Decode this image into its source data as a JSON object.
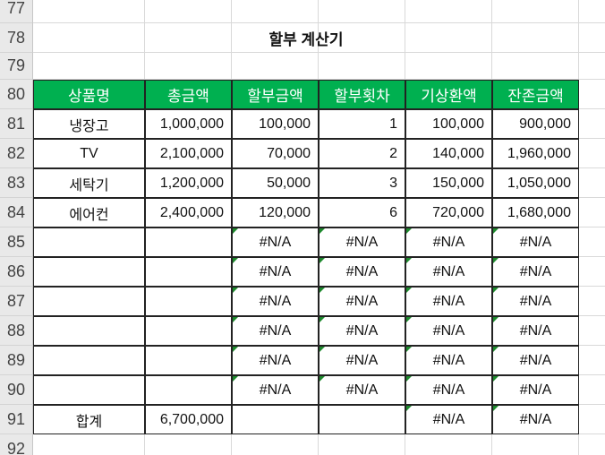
{
  "row_numbers": [
    "77",
    "78",
    "79",
    "80",
    "81",
    "82",
    "83",
    "84",
    "85",
    "86",
    "87",
    "88",
    "89",
    "90",
    "91",
    "92"
  ],
  "title": "할부 계산기",
  "table": {
    "headers": [
      "상품명",
      "총금액",
      "할부금액",
      "할부횟차",
      "기상환액",
      "잔존금액"
    ],
    "rows": [
      [
        "냉장고",
        "1,000,000",
        "100,000",
        "1",
        "100,000",
        "900,000"
      ],
      [
        "TV",
        "2,100,000",
        "70,000",
        "2",
        "140,000",
        "1,960,000"
      ],
      [
        "세탁기",
        "1,200,000",
        "50,000",
        "3",
        "150,000",
        "1,050,000"
      ],
      [
        "에어컨",
        "2,400,000",
        "120,000",
        "6",
        "720,000",
        "1,680,000"
      ],
      [
        "",
        "",
        "#N/A",
        "#N/A",
        "#N/A",
        "#N/A"
      ],
      [
        "",
        "",
        "#N/A",
        "#N/A",
        "#N/A",
        "#N/A"
      ],
      [
        "",
        "",
        "#N/A",
        "#N/A",
        "#N/A",
        "#N/A"
      ],
      [
        "",
        "",
        "#N/A",
        "#N/A",
        "#N/A",
        "#N/A"
      ],
      [
        "",
        "",
        "#N/A",
        "#N/A",
        "#N/A",
        "#N/A"
      ],
      [
        "",
        "",
        "#N/A",
        "#N/A",
        "#N/A",
        "#N/A"
      ]
    ],
    "total": [
      "합계",
      "6,700,000",
      "",
      "",
      "#N/A",
      "#N/A"
    ]
  },
  "colors": {
    "header_fill": "#00b050",
    "error_marker": "#1e8a2e"
  }
}
